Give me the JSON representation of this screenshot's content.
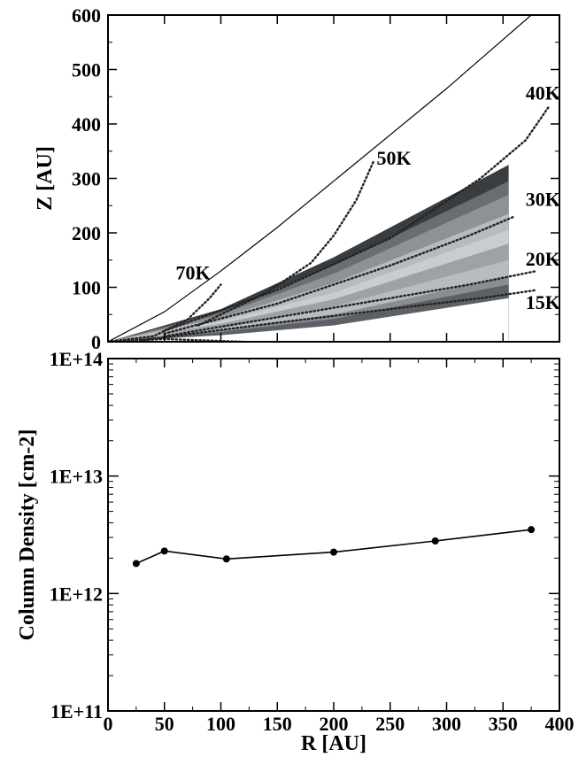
{
  "chart_data": [
    {
      "type": "area",
      "panel": "top",
      "xlabel": "",
      "ylabel": "Z [AU]",
      "xlim": [
        0,
        400
      ],
      "ylim": [
        0,
        600
      ],
      "xticks": [
        0,
        50,
        100,
        150,
        200,
        250,
        300,
        350,
        400
      ],
      "yticks": [
        0,
        100,
        200,
        300,
        400,
        500,
        600
      ],
      "ytick_labels": [
        "0",
        "100",
        "200",
        "300",
        "400",
        "500",
        "600"
      ],
      "grid": false,
      "boundary_curve": {
        "x": [
          0,
          50,
          100,
          150,
          200,
          250,
          300,
          350,
          375
        ],
        "y": [
          0,
          55,
          130,
          210,
          295,
          380,
          465,
          555,
          600
        ]
      },
      "bands": [
        {
          "color": "#3a3d40",
          "upper": [
            [
              0,
              0
            ],
            [
              100,
              60
            ],
            [
              200,
              155
            ],
            [
              355,
              325
            ]
          ],
          "lower": [
            [
              355,
              0
            ],
            [
              0,
              0
            ]
          ]
        },
        {
          "color": "#6a6e72",
          "upper": [
            [
              0,
              0
            ],
            [
              100,
              55
            ],
            [
              200,
              140
            ],
            [
              355,
              295
            ]
          ],
          "lower": [
            [
              355,
              0
            ],
            [
              0,
              0
            ]
          ]
        },
        {
          "color": "#8e9296",
          "upper": [
            [
              0,
              0
            ],
            [
              100,
              50
            ],
            [
              200,
              125
            ],
            [
              355,
              270
            ]
          ],
          "lower": [
            [
              355,
              0
            ],
            [
              0,
              0
            ]
          ]
        },
        {
          "color": "#b7bbbf",
          "upper": [
            [
              0,
              0
            ],
            [
              100,
              44
            ],
            [
              200,
              108
            ],
            [
              355,
              235
            ]
          ],
          "lower": [
            [
              355,
              0
            ],
            [
              0,
              0
            ]
          ]
        },
        {
          "color": "#c9cdd1",
          "upper": [
            [
              0,
              0
            ],
            [
              100,
              38
            ],
            [
              200,
              90
            ],
            [
              355,
              205
            ]
          ],
          "lower": [
            [
              355,
              0
            ],
            [
              0,
              0
            ]
          ]
        },
        {
          "color": "#9ea2a6",
          "upper": [
            [
              0,
              0
            ],
            [
              100,
              33
            ],
            [
              200,
              78
            ],
            [
              355,
              180
            ]
          ],
          "lower": [
            [
              355,
              0
            ],
            [
              0,
              0
            ]
          ]
        },
        {
          "color": "#b8bcc0",
          "upper": [
            [
              0,
              0
            ],
            [
              100,
              28
            ],
            [
              200,
              65
            ],
            [
              355,
              150
            ]
          ],
          "lower": [
            [
              355,
              0
            ],
            [
              0,
              0
            ]
          ]
        },
        {
          "color": "#8a8e92",
          "upper": [
            [
              0,
              0
            ],
            [
              100,
              22
            ],
            [
              200,
              50
            ],
            [
              355,
              120
            ]
          ],
          "lower": [
            [
              355,
              0
            ],
            [
              0,
              0
            ]
          ]
        },
        {
          "color": "#5d6165",
          "upper": [
            [
              0,
              0
            ],
            [
              100,
              18
            ],
            [
              200,
              42
            ],
            [
              355,
              105
            ]
          ],
          "lower": [
            [
              355,
              0
            ],
            [
              0,
              0
            ]
          ]
        },
        {
          "color": "#ffffff",
          "upper": [
            [
              0,
              0
            ],
            [
              100,
              12
            ],
            [
              200,
              30
            ],
            [
              355,
              80
            ]
          ],
          "lower": [
            [
              355,
              0
            ],
            [
              0,
              0
            ]
          ]
        }
      ],
      "contours": [
        {
          "label": "70K",
          "label_at": [
            60,
            115
          ],
          "points": [
            [
              0,
              0
            ],
            [
              40,
              10
            ],
            [
              70,
              40
            ],
            [
              90,
              80
            ],
            [
              100,
              105
            ]
          ]
        },
        {
          "label": "50K",
          "label_at": [
            238,
            325
          ],
          "points": [
            [
              80,
              30
            ],
            [
              140,
              90
            ],
            [
              180,
              145
            ],
            [
              200,
              195
            ],
            [
              220,
              260
            ],
            [
              235,
              330
            ]
          ]
        },
        {
          "label": "40K",
          "label_at": [
            370,
            445
          ],
          "points": [
            [
              50,
              20
            ],
            [
              150,
              95
            ],
            [
              250,
              190
            ],
            [
              330,
              300
            ],
            [
              370,
              370
            ],
            [
              390,
              430
            ]
          ]
        },
        {
          "label": "30K",
          "label_at": [
            370,
            250
          ],
          "points": [
            [
              50,
              15
            ],
            [
              150,
              70
            ],
            [
              250,
              140
            ],
            [
              320,
              195
            ],
            [
              360,
              230
            ]
          ]
        },
        {
          "label": "20K",
          "label_at": [
            370,
            140
          ],
          "points": [
            [
              50,
              10
            ],
            [
              150,
              45
            ],
            [
              250,
              80
            ],
            [
              320,
              105
            ],
            [
              380,
              130
            ]
          ]
        },
        {
          "label": "15K",
          "label_at": [
            370,
            60
          ],
          "points": [
            [
              30,
              3
            ],
            [
              150,
              35
            ],
            [
              250,
              60
            ],
            [
              330,
              80
            ],
            [
              380,
              95
            ]
          ]
        },
        {
          "label": "",
          "label_at": null,
          "points": [
            [
              0,
              0
            ],
            [
              50,
              5
            ],
            [
              120,
              0
            ]
          ]
        }
      ]
    },
    {
      "type": "line",
      "panel": "bottom",
      "xlabel": "R [AU]",
      "ylabel": "Column Density [cm-2]",
      "xlim": [
        0,
        400
      ],
      "ylim": [
        100000000000.0,
        100000000000000.0
      ],
      "yscale": "log",
      "xticks": [
        0,
        50,
        100,
        150,
        200,
        250,
        300,
        350,
        400
      ],
      "xtick_labels": [
        "0",
        "50",
        "100",
        "150",
        "200",
        "250",
        "300",
        "350",
        "400"
      ],
      "yticks": [
        100000000000.0,
        1000000000000.0,
        10000000000000.0,
        100000000000000.0
      ],
      "ytick_labels": [
        "1E+11",
        "1E+12",
        "1E+13",
        "1E+14"
      ],
      "grid": false,
      "x": [
        25,
        50,
        105,
        200,
        290,
        375
      ],
      "y": [
        1800000000000.0,
        2300000000000.0,
        1970000000000.0,
        2250000000000.0,
        2800000000000.0,
        3500000000000.0
      ]
    }
  ]
}
